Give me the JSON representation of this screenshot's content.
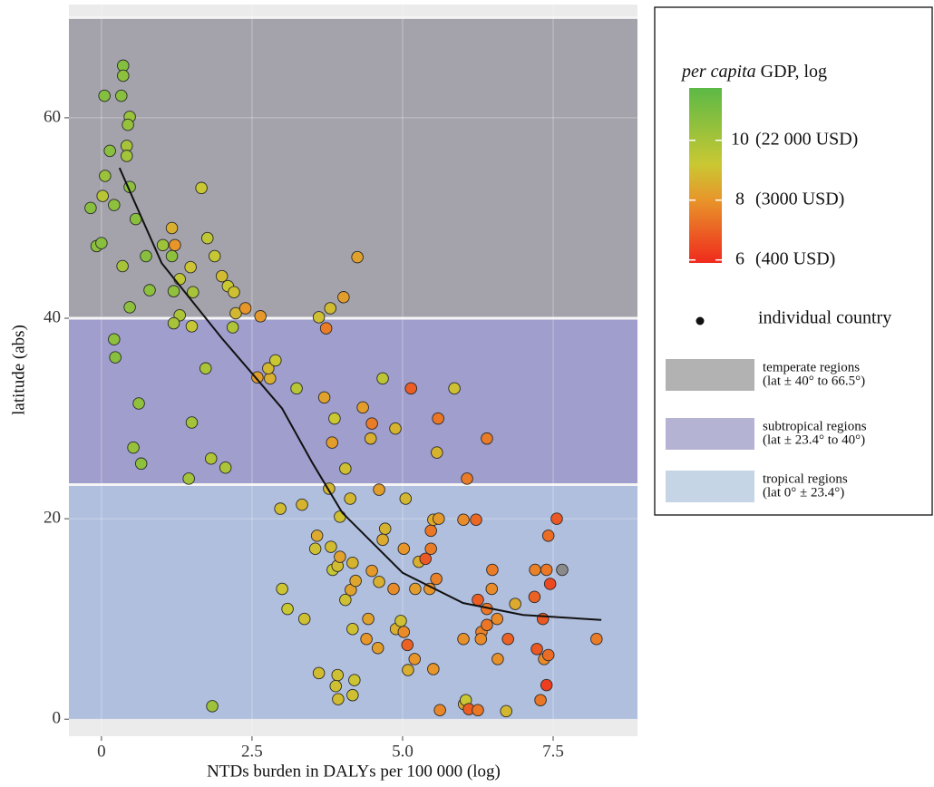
{
  "chart_data": {
    "type": "scatter",
    "x_label": "NTDs burden in DALYs per 100 000 (log)",
    "y_label": "latitude (abs)",
    "xlim": [
      -0.54,
      8.9
    ],
    "ylim": [
      -1.7,
      71.3
    ],
    "xticks": [
      0,
      2.5,
      {
        "value": 5,
        "label": "5.0"
      },
      7.5
    ],
    "yticks": [
      0,
      20,
      40,
      60
    ],
    "grid": true,
    "background": "#ebebeb",
    "bands": [
      {
        "name": "temperate regions",
        "range_label": "(lat ± 40° to 66.5°)",
        "range": [
          40,
          70
        ],
        "color": "#a4a3ab",
        "legend_color": "#b2b2b2"
      },
      {
        "name": "subtropical regions",
        "range_label": "(lat ± 23.4° to 40°)",
        "range": [
          23.4,
          40
        ],
        "color": "#a09ecc",
        "legend_color": "#b4b3d4"
      },
      {
        "name": "tropical regions",
        "range_label": "(lat 0° ± 23.4°)",
        "range": [
          0,
          23.4
        ],
        "color": "#b0bfde",
        "legend_color": "#c6d5e5"
      }
    ],
    "colorbar": {
      "title_italic": "per capita",
      "title_rest": "GDP, log",
      "clim": [
        5.9,
        11.75
      ],
      "ticks": [
        10,
        8,
        6
      ],
      "tick_notes": [
        "(22 000 USD)",
        "(3000 USD)",
        "(400 USD)"
      ],
      "colorscale": [
        {
          "value": 5.9,
          "color": "#ef2a1d"
        },
        {
          "value": 8,
          "color": "#e8952a"
        },
        {
          "value": 9.2,
          "color": "#c9c833"
        },
        {
          "value": 11.75,
          "color": "#5cb946"
        }
      ],
      "missing_color": "#8a8a8a"
    },
    "trend": {
      "color": "#111111",
      "x": [
        0.3,
        1,
        2,
        3,
        3.5,
        4,
        5,
        6,
        7,
        8.3
      ],
      "y": [
        55,
        45.5,
        38,
        31,
        25.6,
        20.6,
        14.6,
        11.6,
        10.4,
        9.9
      ]
    },
    "series": [
      {
        "name": "individual country",
        "legend_color": "#111111",
        "x": [
          0.05,
          0.33,
          0.36,
          0.36,
          0.47,
          0.44,
          0.42,
          0.42,
          0.14,
          0.06,
          0.02,
          0.21,
          -0.18,
          0.47,
          0.57,
          -0.08,
          0,
          0.35,
          0.21,
          0.23,
          0.47,
          0.53,
          0.62,
          0.66,
          1.02,
          1.22,
          1.17,
          0.74,
          0.8,
          1.2,
          1.3,
          1.17,
          1.66,
          1.76,
          1.88,
          2,
          2.1,
          2.2,
          2.23,
          2.39,
          2.64,
          2.18,
          1.3,
          1.2,
          1.5,
          1.48,
          1.52,
          1.73,
          1.5,
          1.82,
          1.45,
          2.06,
          1.84,
          2.59,
          2.8,
          2.77,
          2.89,
          3.24,
          3.61,
          3.7,
          3.73,
          3.8,
          4.02,
          4.25,
          3.87,
          3.83,
          4.05,
          4.34,
          4.49,
          4.47,
          4.67,
          4.88,
          5.14,
          5.86,
          5.59,
          5.57,
          6.07,
          6.4,
          3.33,
          2.97,
          3,
          3.09,
          3.37,
          3.78,
          3.96,
          4.13,
          3.58,
          3.55,
          3.81,
          3.84,
          3.92,
          3.96,
          4.05,
          4.14,
          4.17,
          4.22,
          4.17,
          4.43,
          4.4,
          4.59,
          4.49,
          4.61,
          4.61,
          4.71,
          4.67,
          4.85,
          4.89,
          4.97,
          5.02,
          5.05,
          5.02,
          5.08,
          5.09,
          5.21,
          5.2,
          5.27,
          5.38,
          5.45,
          5.47,
          5.47,
          5.51,
          5.6,
          5.56,
          5.51,
          5.62,
          3.92,
          3.89,
          3.93,
          4.2,
          4.17,
          3.61,
          6.01,
          6.22,
          6.01,
          6.25,
          6.31,
          6.3,
          6.4,
          6.48,
          6.49,
          6.57,
          6.4,
          6.58,
          6.02,
          6.05,
          6.1,
          6.25,
          6.72,
          6.75,
          6.87,
          7.2,
          7.19,
          7.23,
          7.29,
          7.33,
          7.39,
          7.35,
          7.42,
          7.39,
          7.42,
          7.45,
          7.56,
          7.65,
          8.22
        ],
        "y": [
          62.2,
          62.2,
          65.2,
          64.2,
          60.1,
          59.3,
          57.2,
          56.2,
          56.7,
          54.2,
          52.2,
          51.3,
          51,
          53.1,
          49.9,
          47.2,
          47.5,
          45.2,
          37.9,
          36.1,
          41.1,
          27.1,
          31.5,
          25.5,
          47.3,
          47.3,
          46.2,
          46.2,
          42.8,
          42.7,
          43.9,
          49,
          53,
          48,
          46.2,
          44.2,
          43.2,
          42.6,
          40.5,
          41,
          40.2,
          39.1,
          40.3,
          39.5,
          39.2,
          45.1,
          42.6,
          35,
          29.6,
          26,
          24,
          25.1,
          1.3,
          34.1,
          34,
          35,
          35.8,
          33,
          40.1,
          32.1,
          39,
          41,
          42.1,
          46.1,
          30,
          27.6,
          25,
          31.1,
          29.5,
          28,
          34,
          29,
          33,
          33,
          30,
          26.6,
          24,
          28,
          21.4,
          21,
          13,
          11,
          10,
          23,
          20.2,
          22,
          18.3,
          17,
          17.2,
          14.9,
          15.3,
          16.2,
          11.9,
          12.9,
          15.6,
          13.8,
          9,
          10,
          8,
          7.1,
          14.8,
          13.7,
          22.9,
          19,
          17.9,
          13,
          9,
          9.8,
          8.7,
          22,
          17,
          7.4,
          4.9,
          13,
          6,
          15.7,
          16,
          13,
          17,
          18.8,
          19.9,
          20,
          14,
          5,
          0.9,
          4.4,
          3.3,
          2,
          3.9,
          2.4,
          4.6,
          19.9,
          19.9,
          8,
          11.9,
          8.7,
          8,
          11,
          13,
          14.9,
          10,
          9.4,
          6,
          1.5,
          1.9,
          1,
          0.9,
          0.8,
          8,
          11.5,
          14.9,
          12.2,
          7,
          1.9,
          10,
          14.9,
          6,
          6.4,
          3.4,
          18.3,
          13.5,
          20,
          14.9,
          8
        ],
        "gdp": [
          10.8,
          10.7,
          10.8,
          10.6,
          10.3,
          10.4,
          10,
          10.1,
          10.7,
          10.3,
          9.6,
          10.6,
          10.7,
          10.6,
          10.7,
          10.6,
          10.7,
          10,
          10.6,
          10.7,
          10.6,
          10.4,
          10.5,
          10.6,
          10.2,
          8,
          10.6,
          10.7,
          10.6,
          10.5,
          9.4,
          8.6,
          9.2,
          9.4,
          9.3,
          8.9,
          9.2,
          9,
          8.8,
          8,
          8.1,
          9.8,
          9.9,
          10,
          9.3,
          9.1,
          10,
          9.9,
          10.1,
          9.8,
          10.1,
          9.9,
          10.2,
          8.2,
          8.6,
          8.8,
          9.2,
          9.6,
          9,
          8.3,
          7.5,
          8.9,
          8.2,
          8.3,
          9.2,
          8.2,
          9,
          8.2,
          7.5,
          8.6,
          9.5,
          8.7,
          6.9,
          9,
          7.4,
          8.7,
          7.5,
          7.5,
          8.7,
          8.9,
          9.1,
          9.2,
          9,
          8.8,
          9,
          8.8,
          8.5,
          9,
          8.9,
          9.3,
          8.9,
          8.3,
          9,
          8.3,
          8.7,
          8.4,
          9,
          8.3,
          8,
          8.2,
          8.1,
          8.6,
          8.2,
          8.7,
          8.5,
          7.8,
          8.6,
          9,
          7.8,
          8.8,
          8,
          7,
          8.6,
          8.2,
          8,
          8.6,
          6.8,
          8,
          7.5,
          7.4,
          8.5,
          8.1,
          7.6,
          8,
          7.7,
          9,
          9,
          8.9,
          9.1,
          9,
          8.9,
          7.8,
          7.1,
          7.9,
          6.9,
          7.6,
          7.8,
          7.4,
          7.8,
          7.5,
          7.8,
          7.4,
          7.9,
          8.5,
          9.2,
          6.9,
          7.4,
          8.8,
          7,
          8.5,
          7.6,
          7,
          6.8,
          7.4,
          6.8,
          7.4,
          7.8,
          7.2,
          6.3,
          7.2,
          6.5,
          6.8,
          null,
          7.5
        ]
      }
    ]
  }
}
